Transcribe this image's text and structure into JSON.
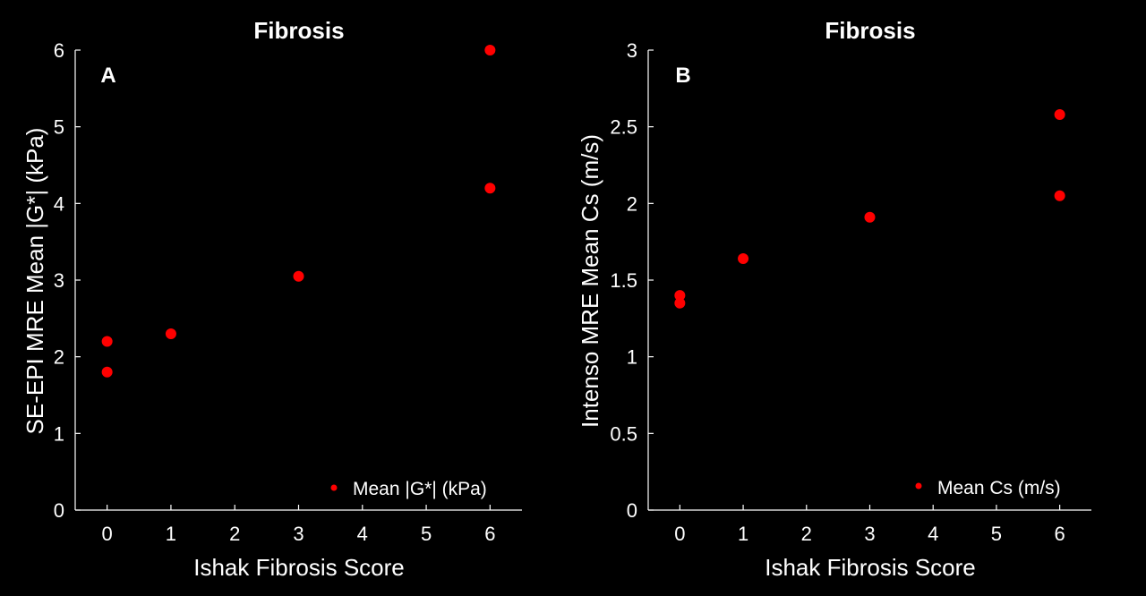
{
  "chart_data": [
    {
      "type": "scatter",
      "panel_label": "A",
      "title": "Fibrosis",
      "xlabel": "Ishak Fibrosis Score",
      "ylabel": "SE-EPI MRE Mean |G*| (kPa)",
      "xlim": [
        -0.5,
        6.5
      ],
      "ylim": [
        0,
        6
      ],
      "xticks": [
        0,
        1,
        2,
        3,
        4,
        5,
        6
      ],
      "yticks": [
        0,
        1,
        2,
        3,
        4,
        5,
        6
      ],
      "xtick_labels": [
        "0",
        "1",
        "2",
        "3",
        "4",
        "5",
        "6"
      ],
      "ytick_labels": [
        "0",
        "1",
        "2",
        "3",
        "4",
        "5",
        "6"
      ],
      "legend_position": "bottom-right",
      "color": "#ff0000",
      "series": [
        {
          "name": "Mean |G*| (kPa)",
          "points": [
            {
              "x": 0,
              "y": 2.2
            },
            {
              "x": 0,
              "y": 1.8
            },
            {
              "x": 1,
              "y": 2.3
            },
            {
              "x": 3,
              "y": 3.05
            },
            {
              "x": 6,
              "y": 6.0
            },
            {
              "x": 6,
              "y": 4.2
            }
          ]
        }
      ]
    },
    {
      "type": "scatter",
      "panel_label": "B",
      "title": "Fibrosis",
      "xlabel": "Ishak Fibrosis Score",
      "ylabel": "Intenso MRE Mean Cs (m/s)",
      "xlim": [
        -0.5,
        6.5
      ],
      "ylim": [
        0,
        3
      ],
      "xticks": [
        0,
        1,
        2,
        3,
        4,
        5,
        6
      ],
      "yticks": [
        0,
        0.5,
        1,
        1.5,
        2,
        2.5,
        3
      ],
      "xtick_labels": [
        "0",
        "1",
        "2",
        "3",
        "4",
        "5",
        "6"
      ],
      "ytick_labels": [
        "0",
        "0.5",
        "1",
        "1.5",
        "2",
        "2.5",
        "3"
      ],
      "legend_position": "bottom-right",
      "color": "#ff0000",
      "series": [
        {
          "name": "Mean Cs (m/s)",
          "points": [
            {
              "x": 0,
              "y": 1.4
            },
            {
              "x": 0,
              "y": 1.35
            },
            {
              "x": 1,
              "y": 1.64
            },
            {
              "x": 3,
              "y": 1.91
            },
            {
              "x": 6,
              "y": 2.58
            },
            {
              "x": 6,
              "y": 2.05
            }
          ]
        }
      ]
    }
  ]
}
